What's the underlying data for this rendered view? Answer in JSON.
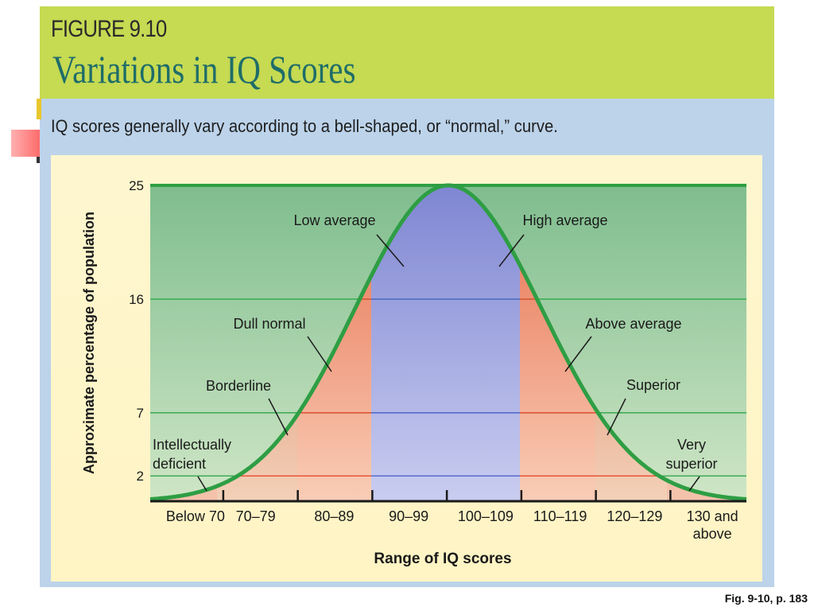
{
  "figure": {
    "label": "FIGURE 9.10",
    "title": "Variations in IQ Scores",
    "caption": "IQ scores generally vary according to a bell-shaped, or “normal,” curve.",
    "reference": "Fig. 9-10, p. 183"
  },
  "chart_data": {
    "type": "area",
    "title": "Variations in IQ Scores",
    "xlabel": "Range of IQ scores",
    "ylabel": "Approximate percentage of population",
    "categories": [
      "Below 70",
      "70–79",
      "80–89",
      "90–99",
      "100–109",
      "110–119",
      "120–129",
      "130 and above"
    ],
    "values": [
      2,
      7,
      16,
      25,
      25,
      16,
      7,
      2
    ],
    "y_ticks": [
      2,
      7,
      16,
      25
    ],
    "ylim": [
      0,
      25
    ],
    "grid": true,
    "region_labels": [
      {
        "text": "Low average",
        "category": "90–99"
      },
      {
        "text": "High average",
        "category": "100–109"
      },
      {
        "text": "Dull normal",
        "category": "80–89"
      },
      {
        "text": "Above average",
        "category": "110–119"
      },
      {
        "text": "Borderline",
        "category": "70–79"
      },
      {
        "text": "Superior",
        "category": "120–129"
      },
      {
        "text": "Intellectually deficient",
        "category": "Below 70"
      },
      {
        "text": "Very superior",
        "category": "130 and above"
      }
    ],
    "colors": {
      "curve": "#2e9e44",
      "background": "#9fcca4",
      "middle_band": "#9ea6de",
      "side_band": "#ee8e6e",
      "tail_band": "#f0aa8a",
      "gridline_green": "#3fae57",
      "gridline_red": "#e9563a",
      "gridline_blue": "#5b6bd0"
    }
  }
}
